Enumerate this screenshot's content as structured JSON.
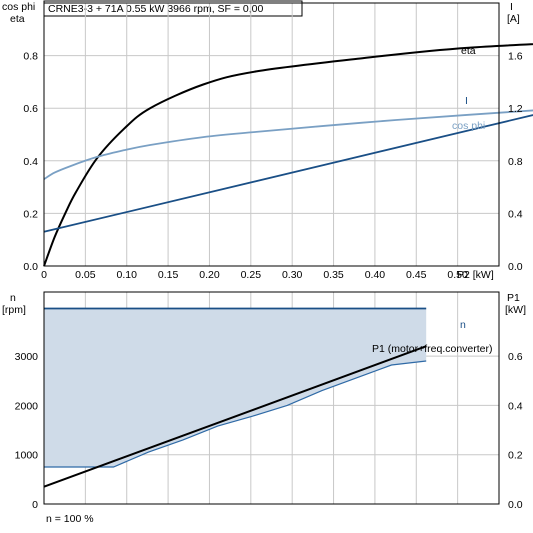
{
  "header": {
    "title": "CRNE3-3 + 71A   0.55 kW   3966 rpm, SF = 0,00"
  },
  "footer": {
    "note": "n = 100 %"
  },
  "colors": {
    "eta": "#000000",
    "I": "#1a4f86",
    "cos_phi": "#7aa0c4",
    "P1": "#000000",
    "n": "#1a4f86",
    "band_fill": "#cfdbe8",
    "band_edge": "#2f6aa6",
    "grid": "#c8c8c8"
  },
  "chart_data": [
    {
      "type": "line",
      "title": "",
      "x_unit_label": "P2 [kW]",
      "xlim": [
        0,
        0.55
      ],
      "x_ticks": [
        "0",
        "0.05",
        "0.10",
        "0.15",
        "0.20",
        "0.25",
        "0.30",
        "0.35",
        "0.40",
        "0.45",
        "0.50"
      ],
      "x_tick_values": [
        0,
        0.05,
        0.1,
        0.15,
        0.2,
        0.25,
        0.3,
        0.35,
        0.4,
        0.45,
        0.5
      ],
      "left_axis": {
        "label_line1": "cos phi",
        "label_line2": "eta",
        "ylim": [
          0,
          1.0
        ],
        "ticks": [
          "0.0",
          "0.2",
          "0.4",
          "0.6",
          "0.8"
        ],
        "tick_values": [
          0,
          0.2,
          0.4,
          0.6,
          0.8
        ]
      },
      "right_axis": {
        "label_line1": "I",
        "label_line2": "[A]",
        "ylim": [
          0,
          2.0
        ],
        "ticks": [
          "0.0",
          "0.4",
          "0.8",
          "1.2",
          "1.6"
        ],
        "tick_values": [
          0,
          0.4,
          0.8,
          1.2,
          1.6
        ]
      },
      "grid": true,
      "series": [
        {
          "name": "eta",
          "axis": "left",
          "x": [
            0,
            0.01,
            0.02,
            0.03,
            0.05,
            0.075,
            0.1,
            0.15,
            0.2,
            0.3,
            0.4,
            0.55
          ],
          "values": [
            0,
            0.11,
            0.2,
            0.28,
            0.41,
            0.52,
            0.6,
            0.69,
            0.74,
            0.79,
            0.83,
            0.86
          ]
        },
        {
          "name": "I",
          "axis": "right",
          "x": [
            0,
            0.55
          ],
          "values": [
            0.26,
            1.32
          ]
        },
        {
          "name": "cos phi",
          "axis": "left",
          "x": [
            0,
            0.01,
            0.025,
            0.05,
            0.075,
            0.1,
            0.15,
            0.2,
            0.3,
            0.4,
            0.55
          ],
          "values": [
            0.33,
            0.355,
            0.38,
            0.415,
            0.44,
            0.46,
            0.49,
            0.51,
            0.545,
            0.575,
            0.615
          ]
        }
      ]
    },
    {
      "type": "area",
      "title": "",
      "xlim": [
        0,
        0.55
      ],
      "left_axis": {
        "label_line1": "n",
        "label_line2": "[rpm]",
        "ylim": [
          0,
          4300
        ],
        "ticks": [
          "0",
          "1000",
          "2000",
          "3000"
        ],
        "tick_values": [
          0,
          1000,
          2000,
          3000
        ]
      },
      "right_axis": {
        "label_line1": "P1",
        "label_line2": "[kW]",
        "ylim": [
          0,
          0.86
        ],
        "ticks": [
          "0.0",
          "0.2",
          "0.4",
          "0.6"
        ],
        "tick_values": [
          0,
          0.2,
          0.4,
          0.6
        ]
      },
      "grid": true,
      "series": [
        {
          "name": "n",
          "axis": "left",
          "x": [
            0,
            0.55
          ],
          "values": [
            3966,
            3966
          ]
        },
        {
          "name": "band_lower",
          "axis": "left",
          "x": [
            0,
            0.1,
            0.15,
            0.2,
            0.25,
            0.3,
            0.35,
            0.4,
            0.45,
            0.5,
            0.55
          ],
          "values": [
            750,
            750,
            1050,
            1300,
            1580,
            1780,
            2000,
            2300,
            2560,
            2820,
            2900
          ]
        },
        {
          "name": "P1 (motor+freq.converter)",
          "axis": "right",
          "x": [
            0,
            0.55
          ],
          "values": [
            0.07,
            0.64
          ]
        }
      ]
    }
  ]
}
